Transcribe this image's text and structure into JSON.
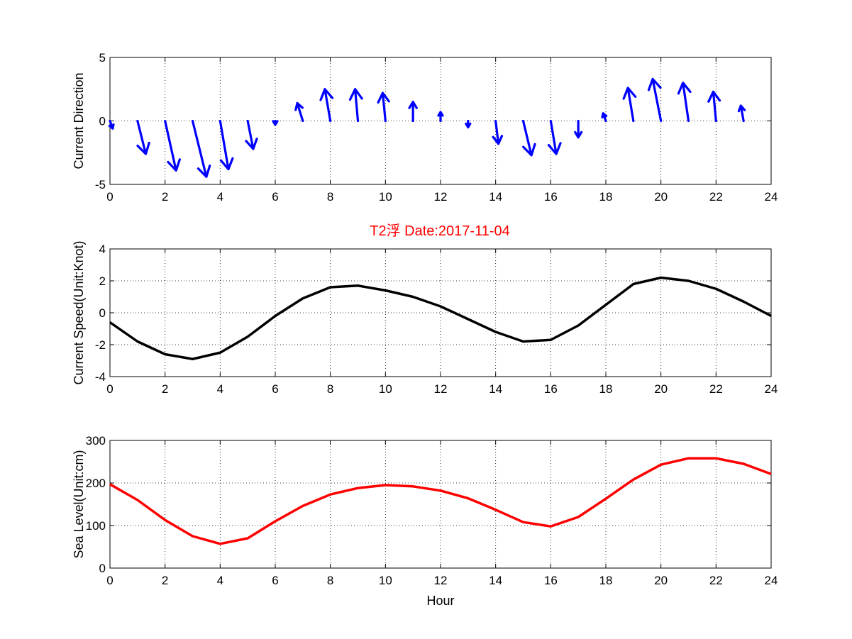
{
  "title": "T2浮    Date:2017-11-04",
  "colors": {
    "quiver": "#0000ff",
    "speed": "#000000",
    "level": "#ff0000",
    "title": "#ff0000"
  },
  "chart_data": [
    {
      "type": "quiver",
      "ylabel": "Current Direction",
      "xlabel": "",
      "xlim": [
        0,
        24
      ],
      "ylim": [
        -5,
        5
      ],
      "xticks": [
        0,
        2,
        4,
        6,
        8,
        10,
        12,
        14,
        16,
        18,
        20,
        22,
        24
      ],
      "yticks": [
        -5,
        0,
        5
      ],
      "grid": true,
      "x": [
        0,
        1,
        2,
        3,
        4,
        5,
        6,
        7,
        8,
        9,
        10,
        11,
        12,
        13,
        14,
        15,
        16,
        17,
        18,
        19,
        20,
        21,
        22,
        23
      ],
      "u": [
        0.1,
        0.3,
        0.4,
        0.5,
        0.3,
        0.2,
        0.0,
        -0.2,
        -0.2,
        -0.1,
        -0.1,
        0.0,
        0.0,
        0.0,
        0.1,
        0.3,
        0.2,
        0.0,
        -0.1,
        -0.2,
        -0.3,
        -0.2,
        -0.1,
        -0.1
      ],
      "v": [
        -0.6,
        -2.6,
        -3.9,
        -4.4,
        -3.8,
        -2.2,
        -0.3,
        1.4,
        2.5,
        2.5,
        2.2,
        1.5,
        0.7,
        -0.5,
        -1.8,
        -2.7,
        -2.6,
        -1.3,
        0.6,
        2.6,
        3.3,
        3.0,
        2.3,
        1.2
      ]
    },
    {
      "type": "line",
      "ylabel": "Current Speed(Unit:Knot)",
      "xlabel": "",
      "xlim": [
        0,
        24
      ],
      "ylim": [
        -4,
        4
      ],
      "xticks": [
        0,
        2,
        4,
        6,
        8,
        10,
        12,
        14,
        16,
        18,
        20,
        22,
        24
      ],
      "yticks": [
        -4,
        -2,
        0,
        2,
        4
      ],
      "grid": true,
      "x": [
        0,
        1,
        2,
        3,
        4,
        5,
        6,
        7,
        8,
        9,
        10,
        11,
        12,
        13,
        14,
        15,
        16,
        17,
        18,
        19,
        20,
        21,
        22,
        23,
        24
      ],
      "y": [
        -0.6,
        -1.8,
        -2.6,
        -2.9,
        -2.5,
        -1.5,
        -0.2,
        0.9,
        1.6,
        1.7,
        1.4,
        1.0,
        0.4,
        -0.4,
        -1.2,
        -1.8,
        -1.7,
        -0.8,
        0.5,
        1.8,
        2.2,
        2.0,
        1.5,
        0.7,
        -0.2
      ]
    },
    {
      "type": "line",
      "ylabel": "Sea Level(Unit:cm)",
      "xlabel": "Hour",
      "xlim": [
        0,
        24
      ],
      "ylim": [
        0,
        300
      ],
      "xticks": [
        0,
        2,
        4,
        6,
        8,
        10,
        12,
        14,
        16,
        18,
        20,
        22,
        24
      ],
      "yticks": [
        0,
        100,
        200,
        300
      ],
      "grid": true,
      "x": [
        0,
        1,
        2,
        3,
        4,
        5,
        6,
        7,
        8,
        9,
        10,
        11,
        12,
        13,
        14,
        15,
        16,
        17,
        18,
        19,
        20,
        21,
        22,
        23,
        24
      ],
      "y": [
        197,
        160,
        113,
        75,
        57,
        70,
        110,
        146,
        173,
        188,
        195,
        192,
        182,
        164,
        137,
        108,
        98,
        120,
        163,
        208,
        243,
        258,
        258,
        245,
        221
      ]
    }
  ]
}
